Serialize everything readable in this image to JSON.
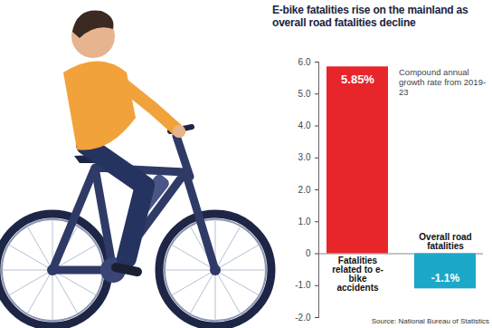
{
  "chart_data": {
    "type": "bar",
    "title": "E-bike fatalities rise on the mainland as overall road fatalities decline",
    "categories": [
      "Fatalities related to e-bike accidents",
      "Overall road fatalities"
    ],
    "values": [
      5.85,
      -1.1
    ],
    "value_labels": [
      "5.85%",
      "-1.1%"
    ],
    "colors": [
      "#e8252b",
      "#1ca8c9"
    ],
    "ylim": [
      -2,
      6
    ],
    "yticks": [
      {
        "value": -2,
        "label": "-2.0"
      },
      {
        "value": -1,
        "label": "-1.0"
      },
      0,
      {
        "value": 1,
        "label": "1.0"
      },
      {
        "value": 2,
        "label": "2.0"
      },
      {
        "value": 3,
        "label": "3.0"
      },
      {
        "value": 4,
        "label": "4.0"
      },
      {
        "value": 5,
        "label": "5.0"
      },
      {
        "value": 6,
        "label": "6.0"
      }
    ],
    "grid": false,
    "data_labels": true,
    "annotation": "Compound annual growth rate from 2019-23",
    "source": "Source: National Bureau of Statistics"
  }
}
